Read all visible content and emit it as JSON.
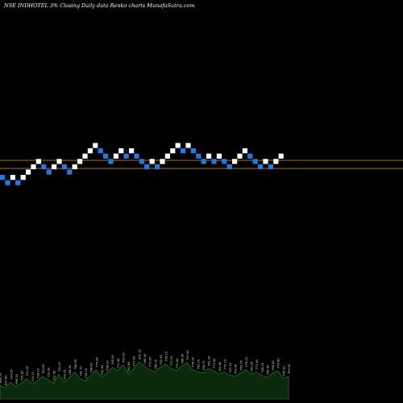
{
  "header": {
    "title": "NSE INDHOTEL 3% Closing Daily data Renko charts MunafaSutra.com"
  },
  "colors": {
    "background": "#000000",
    "up_brick": "#ffffff",
    "down_brick": "#1e7be6",
    "level_line": "#b06a1a",
    "volume_fill": "#0b2a0b",
    "volume_line": "#2f8a2f"
  },
  "chart_data": {
    "type": "renko",
    "brick_size_label": "3%",
    "bricks": [
      {
        "dir": "down",
        "level": 0
      },
      {
        "dir": "down",
        "level": -1
      },
      {
        "dir": "up",
        "level": 0
      },
      {
        "dir": "down",
        "level": -1
      },
      {
        "dir": "up",
        "level": 0
      },
      {
        "dir": "up",
        "level": 1
      },
      {
        "dir": "up",
        "level": 2
      },
      {
        "dir": "up",
        "level": 3
      },
      {
        "dir": "down",
        "level": 2
      },
      {
        "dir": "down",
        "level": 1
      },
      {
        "dir": "up",
        "level": 2
      },
      {
        "dir": "up",
        "level": 3
      },
      {
        "dir": "down",
        "level": 2
      },
      {
        "dir": "down",
        "level": 1
      },
      {
        "dir": "up",
        "level": 2
      },
      {
        "dir": "up",
        "level": 3
      },
      {
        "dir": "up",
        "level": 4
      },
      {
        "dir": "up",
        "level": 5
      },
      {
        "dir": "up",
        "level": 6
      },
      {
        "dir": "down",
        "level": 5
      },
      {
        "dir": "down",
        "level": 4
      },
      {
        "dir": "down",
        "level": 3
      },
      {
        "dir": "up",
        "level": 4
      },
      {
        "dir": "up",
        "level": 5
      },
      {
        "dir": "down",
        "level": 4
      },
      {
        "dir": "up",
        "level": 5
      },
      {
        "dir": "down",
        "level": 4
      },
      {
        "dir": "down",
        "level": 3
      },
      {
        "dir": "down",
        "level": 2
      },
      {
        "dir": "up",
        "level": 3
      },
      {
        "dir": "down",
        "level": 2
      },
      {
        "dir": "up",
        "level": 3
      },
      {
        "dir": "up",
        "level": 4
      },
      {
        "dir": "up",
        "level": 5
      },
      {
        "dir": "up",
        "level": 6
      },
      {
        "dir": "down",
        "level": 5
      },
      {
        "dir": "up",
        "level": 6
      },
      {
        "dir": "down",
        "level": 5
      },
      {
        "dir": "down",
        "level": 4
      },
      {
        "dir": "down",
        "level": 3
      },
      {
        "dir": "up",
        "level": 4
      },
      {
        "dir": "down",
        "level": 3
      },
      {
        "dir": "up",
        "level": 4
      },
      {
        "dir": "down",
        "level": 3
      },
      {
        "dir": "down",
        "level": 2
      },
      {
        "dir": "up",
        "level": 3
      },
      {
        "dir": "up",
        "level": 4
      },
      {
        "dir": "up",
        "level": 5
      },
      {
        "dir": "down",
        "level": 4
      },
      {
        "dir": "down",
        "level": 3
      },
      {
        "dir": "down",
        "level": 2
      },
      {
        "dir": "up",
        "level": 3
      },
      {
        "dir": "down",
        "level": 2
      },
      {
        "dir": "up",
        "level": 3
      },
      {
        "dir": "up",
        "level": 4
      }
    ],
    "volume": [
      12,
      10,
      15,
      11,
      14,
      18,
      13,
      16,
      20,
      17,
      14,
      22,
      15,
      19,
      24,
      18,
      16,
      21,
      26,
      19,
      23,
      28,
      25,
      30,
      22,
      27,
      33,
      29,
      26,
      24,
      28,
      31,
      27,
      25,
      29,
      32,
      26,
      24,
      23,
      27,
      25,
      22,
      24,
      21,
      20,
      23,
      26,
      22,
      24,
      21,
      19,
      23,
      25,
      18,
      20
    ],
    "volume_labels": [
      "699.70",
      "697.85",
      "714.15",
      "694.50",
      "725.80",
      "711.65",
      "702.30",
      "738.10",
      "745.60",
      "729.90",
      "712.45",
      "751.20",
      "728.35",
      "744.90",
      "766.55",
      "741.70",
      "735.15",
      "758.80",
      "779.40",
      "752.65",
      "768.30",
      "785.90",
      "771.45",
      "790.25",
      "762.80",
      "777.60",
      "801.15",
      "786.40",
      "773.95",
      "768.20",
      "782.55",
      "795.10",
      "779.35",
      "771.85",
      "788.60",
      "797.40",
      "776.90",
      "769.25",
      "764.70",
      "781.30",
      "773.45",
      "761.80",
      "770.15",
      "757.90",
      "752.40",
      "765.75",
      "779.20",
      "760.35",
      "771.60",
      "758.25",
      "749.90",
      "766.45",
      "774.80",
      "745.30",
      "759.50"
    ]
  }
}
